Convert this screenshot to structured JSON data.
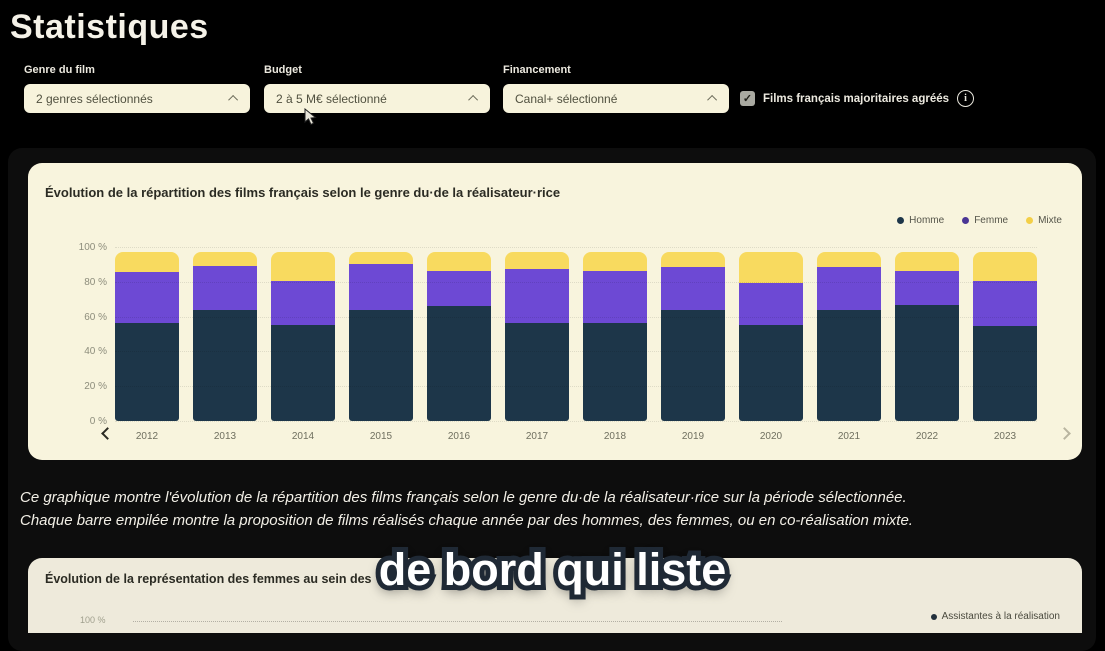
{
  "page": {
    "title": "Statistiques"
  },
  "filters": {
    "genre": {
      "label": "Genre du film",
      "value": "2 genres sélectionnés"
    },
    "budget": {
      "label": "Budget",
      "value": "2 à 5 M€ sélectionné"
    },
    "financement": {
      "label": "Financement",
      "value": "Canal+ sélectionné"
    },
    "agrees_checkbox": {
      "label": "Films français majoritaires agréés",
      "checked": true
    }
  },
  "chart_data": [
    {
      "type": "bar",
      "stacked": true,
      "title": "Évolution de la répartition des films français selon le genre du·de la réalisateur·rice",
      "categories": [
        "2012",
        "2013",
        "2014",
        "2015",
        "2016",
        "2017",
        "2018",
        "2019",
        "2020",
        "2021",
        "2022",
        "2023"
      ],
      "series": [
        {
          "name": "Homme",
          "color": "#1d3649",
          "legend_dot_color": "#1d3649",
          "values": [
            58,
            66,
            57,
            66,
            68,
            58,
            58,
            66,
            57,
            66,
            69,
            56
          ]
        },
        {
          "name": "Femme",
          "color": "#6d49d4",
          "legend_dot_color": "#4a3594",
          "values": [
            30,
            26,
            26,
            27,
            21,
            32,
            31,
            25,
            25,
            25,
            20,
            27
          ]
        },
        {
          "name": "Mixte",
          "color": "#f8da5f",
          "legend_dot_color": "#f3cf47",
          "values": [
            12,
            8,
            17,
            7,
            11,
            10,
            11,
            9,
            18,
            9,
            11,
            17
          ]
        }
      ],
      "unit": "%",
      "ylim": [
        0,
        100
      ],
      "yticks": [
        "0 %",
        "20 %",
        "40 %",
        "60 %",
        "80 %",
        "100 %"
      ],
      "ytick_values": [
        0,
        20,
        40,
        60,
        80,
        100
      ],
      "legend_position": "top-right",
      "grid": "horizontal-dotted",
      "bar_total_height_pct": 97
    },
    {
      "type": "bar",
      "title": "Évolution de la représentation des femmes au sein des",
      "legend": [
        {
          "name": "Assistantes à la réalisation",
          "color": "#22303c"
        }
      ],
      "visible_yticks": [
        "100 %"
      ],
      "note": "card cut off at bottom of viewport"
    }
  ],
  "description": {
    "line1": "Ce graphique montre l'évolution de la répartition des films français selon le genre du·de la réalisateur·rice sur la période sélectionnée.",
    "line2": "Chaque barre empilée montre la proposition de films réalisés chaque année par des hommes, des femmes, ou en co-réalisation mixte."
  },
  "caption": {
    "text": "de bord qui liste"
  },
  "colors": {
    "page_bg": "#000000",
    "panel_bg": "#0d0d0d",
    "card_bg": "#f8f4dd",
    "dropdown_bg": "#f7f3dc",
    "homme": "#1d3649",
    "femme": "#6d49d4",
    "mixte": "#f8da5f"
  }
}
